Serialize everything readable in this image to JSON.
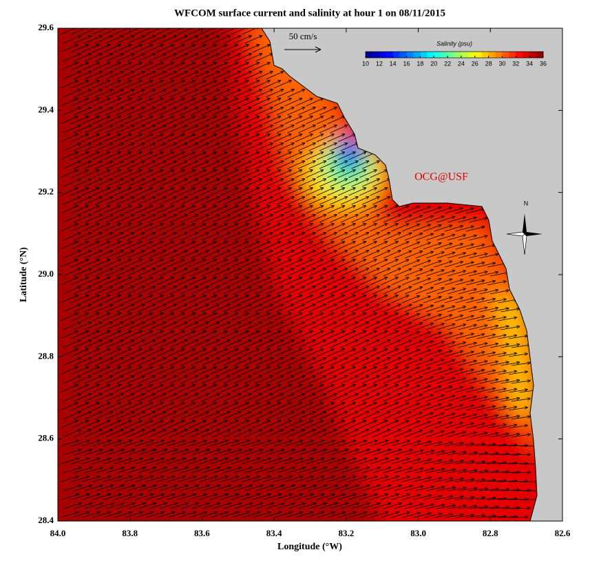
{
  "chart_data": {
    "type": "vector-map",
    "title": "WFCOM surface current and salinity at hour 1 on 08/11/2015",
    "xlabel": "Longitude (°W)",
    "ylabel": "Latitude (°N)",
    "xlim": [
      84.0,
      82.6
    ],
    "ylim": [
      28.4,
      29.6
    ],
    "xticks": [
      {
        "value": 84,
        "label": "84.0"
      },
      83.8,
      83.6,
      83.4,
      83.2,
      {
        "value": 83,
        "label": "83.0"
      },
      82.8,
      82.6
    ],
    "yticks": [
      28.4,
      28.6,
      28.8,
      {
        "value": 29,
        "label": "29.0"
      },
      29.2,
      29.4,
      29.6
    ],
    "scale_label": "50 cm/s",
    "annotation": "OCG@USF",
    "compass_label": "N",
    "colorbar": {
      "title": "Salinity (psu)",
      "clim": [
        10,
        36
      ],
      "ticks": [
        10,
        12,
        14,
        16,
        18,
        20,
        22,
        24,
        26,
        28,
        30,
        32,
        34,
        36
      ]
    }
  }
}
